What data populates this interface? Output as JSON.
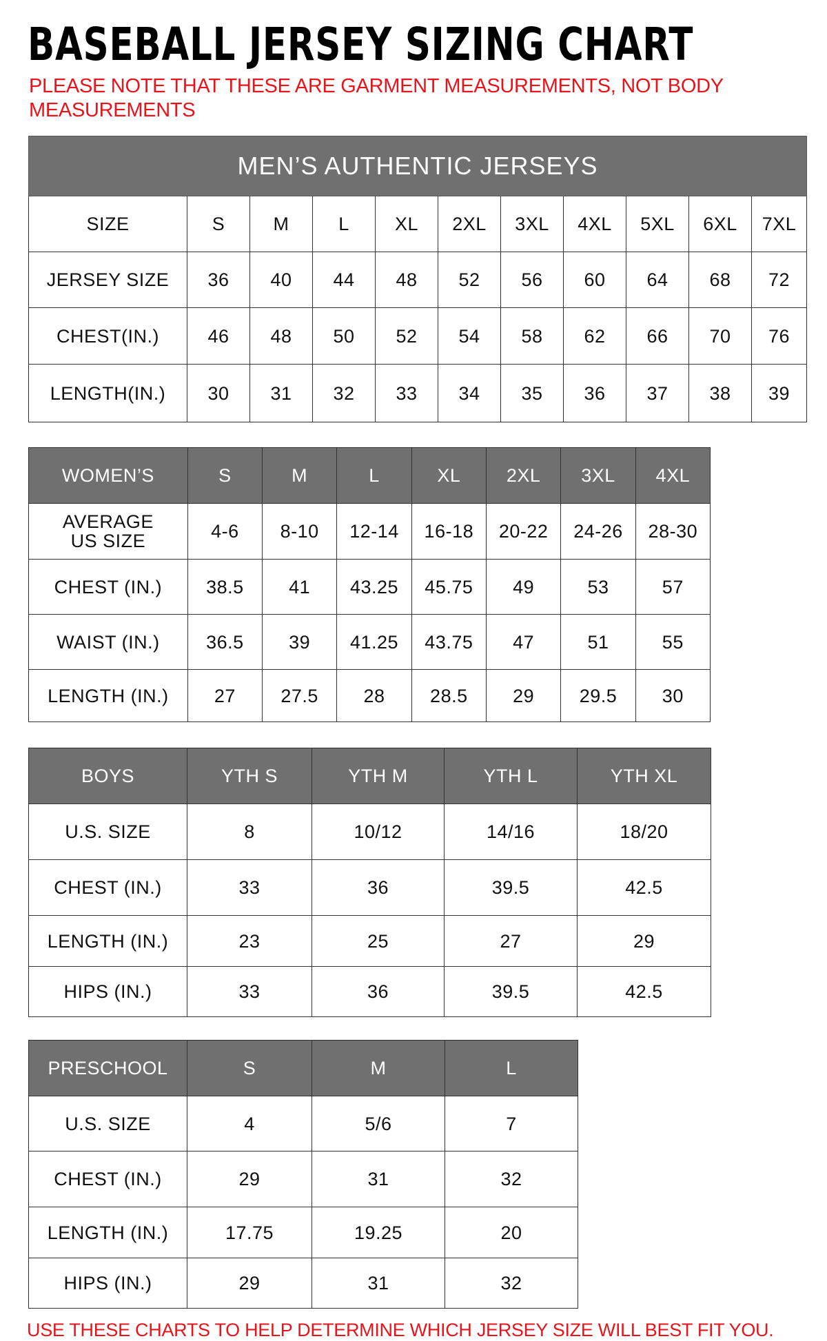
{
  "title": "BASEBALL JERSEY SIZING CHART",
  "note": "PLEASE NOTE THAT THESE ARE GARMENT MEASUREMENTS, NOT BODY MEASUREMENTS",
  "footer": "USE THESE CHARTS TO HELP DETERMINE WHICH JERSEY SIZE WILL BEST FIT YOU.",
  "colors": {
    "header_gray": "#707070",
    "note_red": "#e8141c"
  },
  "tables": [
    {
      "id": "men",
      "banner": "MEN’S AUTHENTIC JERSEYS",
      "header": [
        "SIZE",
        "S",
        "M",
        "L",
        "XL",
        "2XL",
        "3XL",
        "4XL",
        "5XL",
        "6XL",
        "7XL"
      ],
      "header_style": "plain",
      "rows": [
        [
          "JERSEY SIZE",
          "36",
          "40",
          "44",
          "48",
          "52",
          "56",
          "60",
          "64",
          "68",
          "72"
        ],
        [
          "CHEST(IN.)",
          "46",
          "48",
          "50",
          "52",
          "54",
          "58",
          "62",
          "66",
          "70",
          "76"
        ],
        [
          "LENGTH(IN.)",
          "30",
          "31",
          "32",
          "33",
          "34",
          "35",
          "36",
          "37",
          "38",
          "39"
        ]
      ]
    },
    {
      "id": "women",
      "header": [
        "WOMEN’S",
        "S",
        "M",
        "L",
        "XL",
        "2XL",
        "3XL",
        "4XL"
      ],
      "header_style": "gray",
      "rows": [
        [
          "AVERAGE US SIZE",
          "4-6",
          "8-10",
          "12-14",
          "16-18",
          "20-22",
          "24-26",
          "28-30"
        ],
        [
          "CHEST (IN.)",
          "38.5",
          "41",
          "43.25",
          "45.75",
          "49",
          "53",
          "57"
        ],
        [
          "WAIST (IN.)",
          "36.5",
          "39",
          "41.25",
          "43.75",
          "47",
          "51",
          "55"
        ],
        [
          "LENGTH (IN.)",
          "27",
          "27.5",
          "28",
          "28.5",
          "29",
          "29.5",
          "30"
        ]
      ]
    },
    {
      "id": "boys",
      "header": [
        "BOYS",
        "YTH S",
        "YTH M",
        "YTH L",
        "YTH XL"
      ],
      "header_style": "gray",
      "rows": [
        [
          "U.S. SIZE",
          "8",
          "10/12",
          "14/16",
          "18/20"
        ],
        [
          "CHEST (IN.)",
          "33",
          "36",
          "39.5",
          "42.5"
        ],
        [
          "LENGTH (IN.)",
          "23",
          "25",
          "27",
          "29"
        ],
        [
          "HIPS (IN.)",
          "33",
          "36",
          "39.5",
          "42.5"
        ]
      ]
    },
    {
      "id": "pre",
      "header": [
        "PRESCHOOL",
        "S",
        "M",
        "L"
      ],
      "header_style": "gray",
      "rows": [
        [
          "U.S. SIZE",
          "4",
          "5/6",
          "7"
        ],
        [
          "CHEST (IN.)",
          "29",
          "31",
          "32"
        ],
        [
          "LENGTH (IN.)",
          "17.75",
          "19.25",
          "20"
        ],
        [
          "HIPS (IN.)",
          "29",
          "31",
          "32"
        ]
      ]
    }
  ]
}
